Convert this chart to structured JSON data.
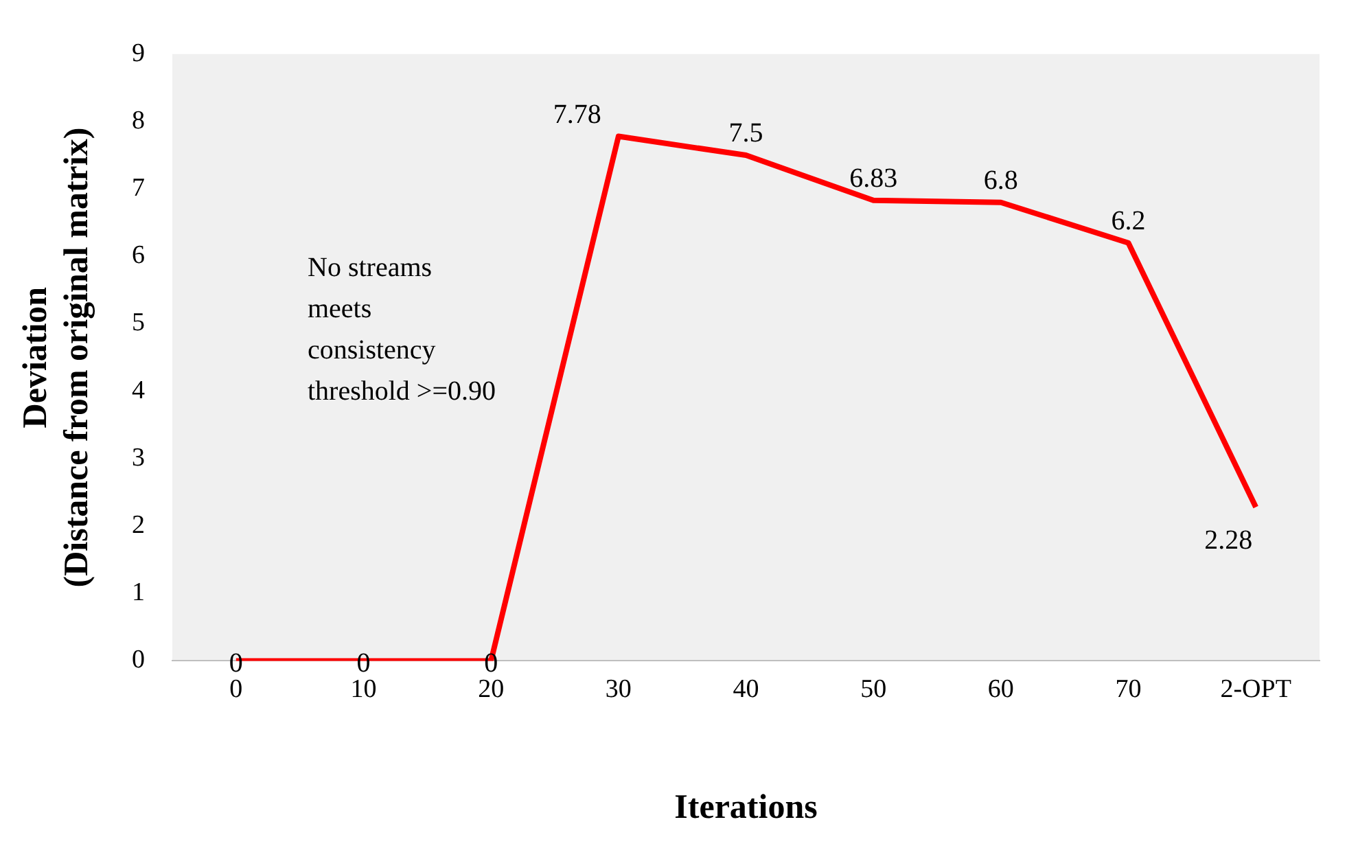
{
  "chart_data": {
    "type": "line",
    "xlabel": "Iterations",
    "ylabel": "Deviation\n(Distance from original matrix)",
    "categories": [
      "0",
      "10",
      "20",
      "30",
      "40",
      "50",
      "60",
      "70",
      "2-OPT"
    ],
    "series": [
      {
        "color": "#ff0000",
        "values": [
          0,
          0,
          0,
          7.78,
          7.5,
          6.83,
          6.8,
          6.2,
          2.28
        ]
      }
    ],
    "ylim": [
      0,
      9
    ],
    "yticks": [
      0,
      1,
      2,
      3,
      4,
      5,
      6,
      7,
      8,
      9
    ],
    "grid": false,
    "legend": false,
    "marker": "none",
    "line_style": "solid",
    "data_labels": true,
    "annotations": [
      "No streams meets consistency threshold >=0.90"
    ]
  }
}
